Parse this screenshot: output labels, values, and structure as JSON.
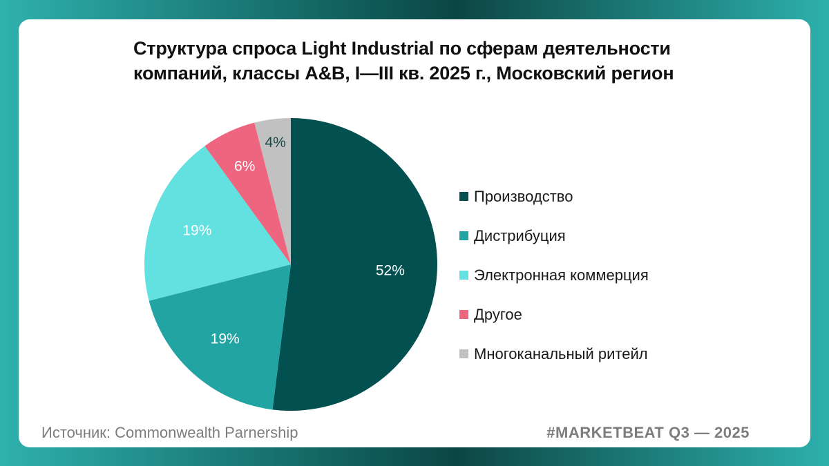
{
  "title_lines": [
    "Структура спроса Light Industrial по сферам деятельности",
    "компаний, классы A&B, I—III кв. 2025 г., Московский регион"
  ],
  "chart_data": {
    "type": "pie",
    "title": "Структура спроса Light Industrial по сферам деятельности компаний, классы A&B, I—III кв. 2025 г., Московский регион",
    "start_angle_deg": 0,
    "direction": "clockwise",
    "legend_position": "right",
    "slices": [
      {
        "name": "Производство",
        "value": 52,
        "label": "52%",
        "color": "#02504f",
        "label_color": "#ffffff"
      },
      {
        "name": "Дистрибуция",
        "value": 19,
        "label": "19%",
        "color": "#21a4a2",
        "label_color": "#ffffff"
      },
      {
        "name": "Электронная коммерция",
        "value": 19,
        "label": "19%",
        "color": "#63e0e0",
        "label_color": "#ffffff"
      },
      {
        "name": "Другое",
        "value": 6,
        "label": "6%",
        "color": "#ee6580",
        "label_color": "#ffffff"
      },
      {
        "name": "Многоканальный ритейл",
        "value": 4,
        "label": "4%",
        "color": "#c1c1c1",
        "label_color": "#1a4a48"
      }
    ]
  },
  "footer": {
    "source": "Источник: Commonwealth Parnership",
    "tag": "#MARKETBEAT Q3 — 2025"
  }
}
